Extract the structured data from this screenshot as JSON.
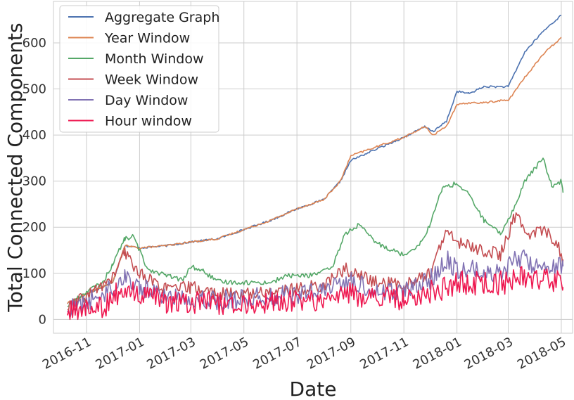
{
  "chart_data": {
    "type": "line",
    "xlabel": "Date",
    "ylabel": "Total Connected Components",
    "grid": true,
    "legend_position": "top-left",
    "x_range": [
      "2016-09-24",
      "2018-05-14"
    ],
    "ylim": [
      -30,
      690
    ],
    "x_ticks": [
      {
        "date": "2016-11-01",
        "label": "2016-11"
      },
      {
        "date": "2017-01-01",
        "label": "2017-01"
      },
      {
        "date": "2017-03-01",
        "label": "2017-03"
      },
      {
        "date": "2017-05-01",
        "label": "2017-05"
      },
      {
        "date": "2017-07-01",
        "label": "2017-07"
      },
      {
        "date": "2017-09-01",
        "label": "2017-09"
      },
      {
        "date": "2017-11-01",
        "label": "2017-11"
      },
      {
        "date": "2018-01-01",
        "label": "2018-01"
      },
      {
        "date": "2018-03-01",
        "label": "2018-03"
      },
      {
        "date": "2018-05-01",
        "label": "2018-05"
      }
    ],
    "y_ticks": [
      0,
      100,
      200,
      300,
      400,
      500,
      600
    ],
    "series": [
      {
        "name": "Aggregate Graph",
        "color": "#4c72b0",
        "noise": 2,
        "points": [
          [
            "2016-10-10",
            35
          ],
          [
            "2016-11-01",
            55
          ],
          [
            "2016-12-01",
            80
          ],
          [
            "2016-12-15",
            160
          ],
          [
            "2017-01-01",
            155
          ],
          [
            "2017-02-01",
            160
          ],
          [
            "2017-03-01",
            168
          ],
          [
            "2017-04-01",
            175
          ],
          [
            "2017-05-01",
            195
          ],
          [
            "2017-06-01",
            215
          ],
          [
            "2017-07-01",
            240
          ],
          [
            "2017-08-01",
            260
          ],
          [
            "2017-08-20",
            300
          ],
          [
            "2017-09-01",
            345
          ],
          [
            "2017-10-01",
            370
          ],
          [
            "2017-11-01",
            395
          ],
          [
            "2017-11-25",
            418
          ],
          [
            "2017-12-05",
            408
          ],
          [
            "2017-12-20",
            430
          ],
          [
            "2018-01-01",
            495
          ],
          [
            "2018-01-15",
            490
          ],
          [
            "2018-02-01",
            505
          ],
          [
            "2018-03-01",
            505
          ],
          [
            "2018-03-20",
            580
          ],
          [
            "2018-04-10",
            625
          ],
          [
            "2018-05-01",
            660
          ]
        ]
      },
      {
        "name": "Year Window",
        "color": "#dd8452",
        "noise": 2,
        "points": [
          [
            "2016-10-10",
            35
          ],
          [
            "2016-11-01",
            55
          ],
          [
            "2016-12-01",
            80
          ],
          [
            "2016-12-15",
            160
          ],
          [
            "2017-01-01",
            155
          ],
          [
            "2017-02-01",
            160
          ],
          [
            "2017-03-01",
            168
          ],
          [
            "2017-04-01",
            175
          ],
          [
            "2017-05-01",
            195
          ],
          [
            "2017-06-01",
            215
          ],
          [
            "2017-07-01",
            240
          ],
          [
            "2017-08-01",
            260
          ],
          [
            "2017-08-20",
            300
          ],
          [
            "2017-09-01",
            355
          ],
          [
            "2017-10-01",
            375
          ],
          [
            "2017-11-01",
            395
          ],
          [
            "2017-11-25",
            418
          ],
          [
            "2017-12-05",
            400
          ],
          [
            "2017-12-20",
            420
          ],
          [
            "2018-01-01",
            465
          ],
          [
            "2018-01-15",
            470
          ],
          [
            "2018-02-01",
            470
          ],
          [
            "2018-02-20",
            475
          ],
          [
            "2018-03-01",
            475
          ],
          [
            "2018-03-20",
            525
          ],
          [
            "2018-04-10",
            575
          ],
          [
            "2018-05-01",
            612
          ]
        ]
      },
      {
        "name": "Month Window",
        "color": "#55a868",
        "noise": 5,
        "points": [
          [
            "2016-10-10",
            30
          ],
          [
            "2016-11-01",
            60
          ],
          [
            "2016-11-20",
            80
          ],
          [
            "2016-12-01",
            120
          ],
          [
            "2016-12-15",
            175
          ],
          [
            "2016-12-25",
            180
          ],
          [
            "2017-01-10",
            110
          ],
          [
            "2017-02-01",
            95
          ],
          [
            "2017-02-20",
            85
          ],
          [
            "2017-03-01",
            115
          ],
          [
            "2017-03-15",
            105
          ],
          [
            "2017-04-01",
            82
          ],
          [
            "2017-05-01",
            80
          ],
          [
            "2017-06-01",
            80
          ],
          [
            "2017-06-20",
            95
          ],
          [
            "2017-07-15",
            95
          ],
          [
            "2017-08-10",
            110
          ],
          [
            "2017-08-25",
            185
          ],
          [
            "2017-09-10",
            205
          ],
          [
            "2017-10-01",
            165
          ],
          [
            "2017-11-01",
            140
          ],
          [
            "2017-11-20",
            165
          ],
          [
            "2017-12-01",
            205
          ],
          [
            "2017-12-15",
            285
          ],
          [
            "2018-01-01",
            295
          ],
          [
            "2018-01-15",
            270
          ],
          [
            "2018-02-01",
            215
          ],
          [
            "2018-02-20",
            185
          ],
          [
            "2018-03-10",
            250
          ],
          [
            "2018-03-20",
            300
          ],
          [
            "2018-04-10",
            350
          ],
          [
            "2018-04-20",
            290
          ],
          [
            "2018-05-01",
            300
          ],
          [
            "2018-05-03",
            275
          ]
        ]
      },
      {
        "name": "Week Window",
        "color": "#c44e52",
        "noise": 14,
        "points": [
          [
            "2016-10-10",
            25
          ],
          [
            "2016-11-01",
            50
          ],
          [
            "2016-12-01",
            90
          ],
          [
            "2016-12-15",
            145
          ],
          [
            "2017-01-01",
            100
          ],
          [
            "2017-02-01",
            65
          ],
          [
            "2017-03-01",
            70
          ],
          [
            "2017-04-01",
            55
          ],
          [
            "2017-05-01",
            55
          ],
          [
            "2017-06-01",
            60
          ],
          [
            "2017-07-01",
            65
          ],
          [
            "2017-08-01",
            75
          ],
          [
            "2017-08-25",
            110
          ],
          [
            "2017-09-10",
            95
          ],
          [
            "2017-10-01",
            80
          ],
          [
            "2017-11-01",
            75
          ],
          [
            "2017-12-01",
            100
          ],
          [
            "2017-12-20",
            190
          ],
          [
            "2018-01-01",
            170
          ],
          [
            "2018-01-20",
            155
          ],
          [
            "2018-02-01",
            150
          ],
          [
            "2018-02-20",
            140
          ],
          [
            "2018-03-10",
            230
          ],
          [
            "2018-03-20",
            185
          ],
          [
            "2018-04-10",
            195
          ],
          [
            "2018-04-25",
            170
          ],
          [
            "2018-05-03",
            130
          ]
        ]
      },
      {
        "name": "Day Window",
        "color": "#8172b3",
        "noise": 22,
        "points": [
          [
            "2016-10-10",
            20
          ],
          [
            "2016-11-01",
            35
          ],
          [
            "2016-12-01",
            70
          ],
          [
            "2016-12-15",
            95
          ],
          [
            "2017-01-01",
            70
          ],
          [
            "2017-02-01",
            50
          ],
          [
            "2017-03-01",
            48
          ],
          [
            "2017-04-01",
            42
          ],
          [
            "2017-05-01",
            45
          ],
          [
            "2017-06-01",
            50
          ],
          [
            "2017-07-01",
            55
          ],
          [
            "2017-08-01",
            60
          ],
          [
            "2017-08-25",
            85
          ],
          [
            "2017-09-10",
            75
          ],
          [
            "2017-10-01",
            62
          ],
          [
            "2017-11-01",
            60
          ],
          [
            "2017-12-01",
            85
          ],
          [
            "2017-12-20",
            130
          ],
          [
            "2018-01-01",
            110
          ],
          [
            "2018-02-01",
            105
          ],
          [
            "2018-02-20",
            100
          ],
          [
            "2018-03-10",
            135
          ],
          [
            "2018-04-01",
            120
          ],
          [
            "2018-05-03",
            115
          ]
        ]
      },
      {
        "name": "Hour window",
        "color": "#ee1850",
        "noise": 26,
        "points": [
          [
            "2016-10-10",
            12
          ],
          [
            "2016-11-01",
            25
          ],
          [
            "2016-11-25",
            30
          ],
          [
            "2016-12-05",
            55
          ],
          [
            "2016-12-20",
            58
          ],
          [
            "2017-01-15",
            45
          ],
          [
            "2017-02-01",
            38
          ],
          [
            "2017-03-01",
            35
          ],
          [
            "2017-04-01",
            35
          ],
          [
            "2017-05-01",
            32
          ],
          [
            "2017-06-01",
            36
          ],
          [
            "2017-07-01",
            40
          ],
          [
            "2017-08-01",
            42
          ],
          [
            "2017-08-25",
            55
          ],
          [
            "2017-09-15",
            52
          ],
          [
            "2017-10-01",
            45
          ],
          [
            "2017-11-01",
            45
          ],
          [
            "2017-11-25",
            55
          ],
          [
            "2017-12-10",
            68
          ],
          [
            "2017-12-25",
            65
          ],
          [
            "2018-01-01",
            80
          ],
          [
            "2018-02-01",
            78
          ],
          [
            "2018-03-01",
            80
          ],
          [
            "2018-03-15",
            90
          ],
          [
            "2018-04-01",
            88
          ],
          [
            "2018-05-01",
            85
          ],
          [
            "2018-05-03",
            70
          ]
        ]
      }
    ]
  }
}
